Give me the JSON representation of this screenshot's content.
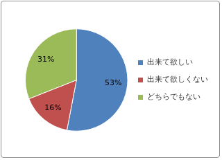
{
  "chart_data": {
    "type": "pie",
    "categories": [
      "出来て欲しい",
      "出来て欲しくない",
      "どちらでもない"
    ],
    "values": [
      53,
      16,
      31
    ],
    "value_labels": [
      "53%",
      "16%",
      "31%"
    ],
    "colors": [
      "#4f81bd",
      "#c0504d",
      "#9bbb59"
    ],
    "legend": "right",
    "data_labels": true
  }
}
